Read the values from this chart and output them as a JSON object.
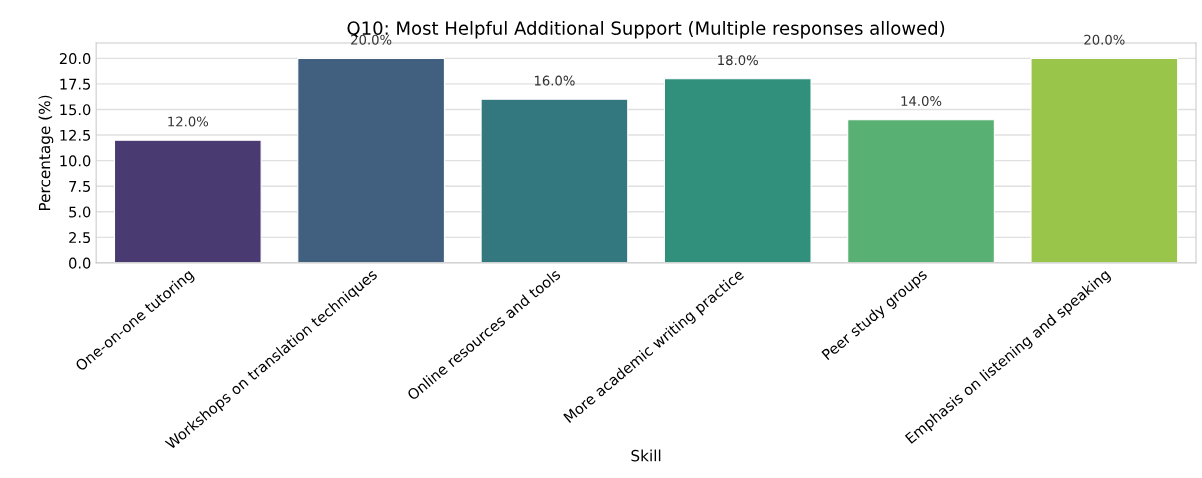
{
  "chart_data": {
    "type": "bar",
    "title": "Q10: Most Helpful Additional Support (Multiple responses allowed)",
    "xlabel": "Skill",
    "ylabel": "Percentage (%)",
    "categories": [
      "One-on-one tutoring",
      "Workshops on translation techniques",
      "Online resources and tools",
      "More academic writing practice",
      "Peer study groups",
      "Emphasis on listening and speaking"
    ],
    "values": [
      12.0,
      20.0,
      16.0,
      18.0,
      14.0,
      20.0
    ],
    "colors": [
      "#4a3a72",
      "#415f7f",
      "#33777f",
      "#31907c",
      "#58b173",
      "#9ac54b"
    ],
    "value_labels": [
      "12.0%",
      "20.0%",
      "16.0%",
      "18.0%",
      "14.0%",
      "20.0%"
    ],
    "ylim": [
      0,
      21.5
    ],
    "yticks": [
      {
        "value": 0,
        "label": "0.0"
      },
      {
        "value": 2.5,
        "label": "2.5"
      },
      {
        "value": 5,
        "label": "5.0"
      },
      {
        "value": 7.5,
        "label": "7.5"
      },
      {
        "value": 10,
        "label": "10.0"
      },
      {
        "value": 12.5,
        "label": "12.5"
      },
      {
        "value": 15,
        "label": "15.0"
      },
      {
        "value": 17.5,
        "label": "17.5"
      },
      {
        "value": 20,
        "label": "20.0"
      }
    ],
    "grid": "y",
    "legend": false
  }
}
